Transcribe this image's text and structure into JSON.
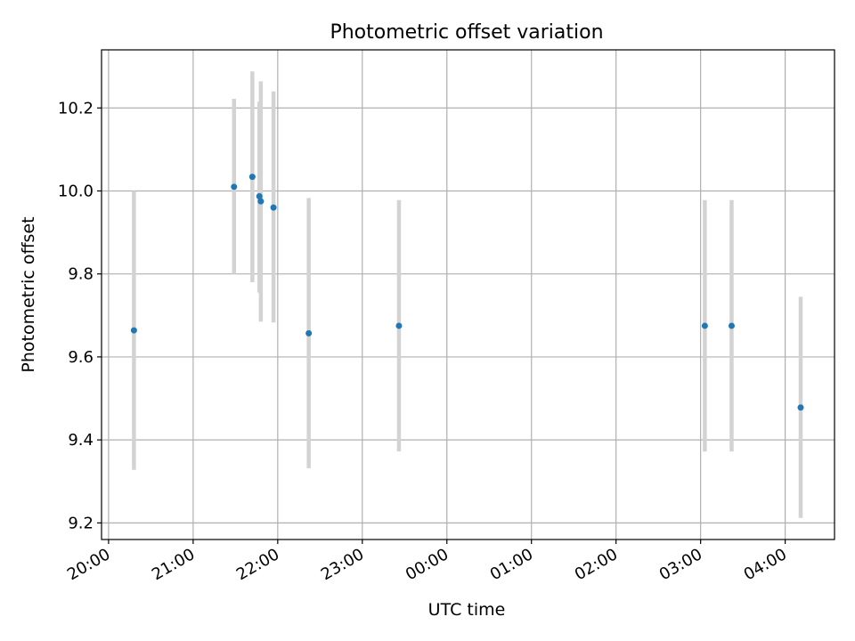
{
  "chart_data": {
    "type": "scatter",
    "title": "Photometric offset variation",
    "xlabel": "UTC time",
    "ylabel": "Photometric offset",
    "x_axis": {
      "kind": "time",
      "range": [
        "19:55",
        "04:35"
      ],
      "ticks": [
        "20:00",
        "21:00",
        "22:00",
        "23:00",
        "00:00",
        "01:00",
        "02:00",
        "03:00",
        "04:00"
      ]
    },
    "y_axis": {
      "range": [
        9.16,
        10.34
      ],
      "ticks": [
        "9.2",
        "9.4",
        "9.6",
        "9.8",
        "10.0",
        "10.2"
      ]
    },
    "grid": true,
    "points": [
      {
        "x": "20:18",
        "y": 9.664,
        "err_low": 9.328,
        "err_high": 10.0
      },
      {
        "x": "21:29",
        "y": 10.01,
        "err_low": 9.8,
        "err_high": 10.222
      },
      {
        "x": "21:42",
        "y": 10.034,
        "err_low": 9.78,
        "err_high": 10.288
      },
      {
        "x": "21:47",
        "y": 9.987,
        "err_low": 9.755,
        "err_high": 10.215
      },
      {
        "x": "21:48",
        "y": 9.975,
        "err_low": 9.685,
        "err_high": 10.264
      },
      {
        "x": "21:57",
        "y": 9.96,
        "err_low": 9.683,
        "err_high": 10.24
      },
      {
        "x": "22:22",
        "y": 9.657,
        "err_low": 9.332,
        "err_high": 9.983
      },
      {
        "x": "23:26",
        "y": 9.675,
        "err_low": 9.372,
        "err_high": 9.978
      },
      {
        "x": "03:03",
        "y": 9.675,
        "err_low": 9.372,
        "err_high": 9.978
      },
      {
        "x": "03:22",
        "y": 9.675,
        "err_low": 9.372,
        "err_high": 9.978
      },
      {
        "x": "04:11",
        "y": 9.478,
        "err_low": 9.212,
        "err_high": 9.745
      }
    ],
    "colors": {
      "marker": "#1f77b4",
      "errorbar": "#d3d3d3",
      "grid": "#b0b0b0",
      "axes": "#000000"
    }
  }
}
